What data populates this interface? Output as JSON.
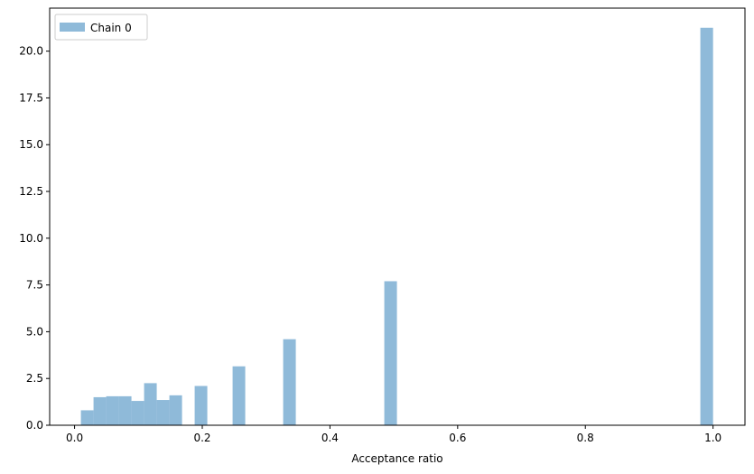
{
  "chart_data": {
    "type": "histogram",
    "xlabel": "Acceptance ratio",
    "ylabel": "",
    "title": "",
    "xlim": [
      -0.039,
      1.05
    ],
    "ylim": [
      0,
      22.3
    ],
    "xticks": [
      0.0,
      0.2,
      0.4,
      0.6,
      0.8,
      1.0
    ],
    "xtick_labels": [
      "0.0",
      "0.2",
      "0.4",
      "0.6",
      "0.8",
      "1.0"
    ],
    "yticks": [
      0.0,
      2.5,
      5.0,
      7.5,
      10.0,
      12.5,
      15.0,
      17.5,
      20.0
    ],
    "ytick_labels": [
      "0.0",
      "2.5",
      "5.0",
      "7.5",
      "10.0",
      "12.5",
      "15.0",
      "17.5",
      "20.0"
    ],
    "grid": false,
    "legend": {
      "placement": "upper left",
      "entries": [
        "Chain 0"
      ]
    },
    "bar_color": "#8fbad9",
    "series": [
      {
        "name": "Chain 0",
        "bin_edges": [
          0.0099,
          0.0297,
          0.0495,
          0.0693,
          0.0891,
          0.1089,
          0.1287,
          0.1485,
          0.1683,
          0.1881,
          0.2079,
          0.2277,
          0.2475,
          0.2673,
          0.2871,
          0.3069,
          0.3267,
          0.3465,
          0.3663,
          0.3861,
          0.4059,
          0.4257,
          0.4455,
          0.4653,
          0.4851,
          0.5049,
          0.5247,
          0.5445,
          0.5643,
          0.5841,
          0.6039,
          0.6237,
          0.6435,
          0.6633,
          0.6831,
          0.7029,
          0.7227,
          0.7425,
          0.7623,
          0.7821,
          0.8019,
          0.8217,
          0.8415,
          0.8613,
          0.8811,
          0.9009,
          0.9207,
          0.9405,
          0.9603,
          0.9801,
          1.0
        ],
        "values": [
          0.8,
          1.5,
          1.55,
          1.55,
          1.3,
          2.25,
          1.35,
          1.6,
          0,
          2.1,
          0,
          0,
          3.15,
          0,
          0,
          0,
          4.6,
          0,
          0,
          0,
          0,
          0,
          0,
          0,
          7.7,
          0,
          0,
          0,
          0,
          0,
          0,
          0,
          0,
          0,
          0,
          0,
          0,
          0,
          0,
          0,
          0,
          0,
          0,
          0,
          0,
          0,
          0,
          0,
          0,
          21.25
        ]
      }
    ]
  }
}
